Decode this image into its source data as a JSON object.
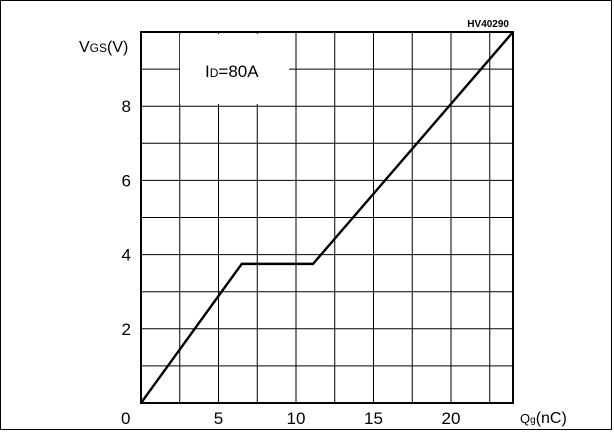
{
  "chart_data": {
    "type": "line",
    "title": "",
    "figure_code": "HV40290",
    "ylabel": "V",
    "ylabel_sub": "GS",
    "ylabel_unit": "(V)",
    "xlabel": "Q",
    "xlabel_sub": "g",
    "xlabel_unit": "(nC)",
    "annotation": "I",
    "annotation_sub": "D",
    "annotation_rest": "=80A",
    "origin_label": "0",
    "xlim": [
      0,
      24
    ],
    "ylim": [
      0,
      10
    ],
    "xticks": [
      5,
      10,
      15,
      20
    ],
    "yticks": [
      2,
      4,
      6,
      8
    ],
    "grid": true,
    "series": [
      {
        "x": [
          0,
          6.5,
          11.1,
          24
        ],
        "y": [
          0,
          3.75,
          3.75,
          10
        ]
      }
    ]
  }
}
